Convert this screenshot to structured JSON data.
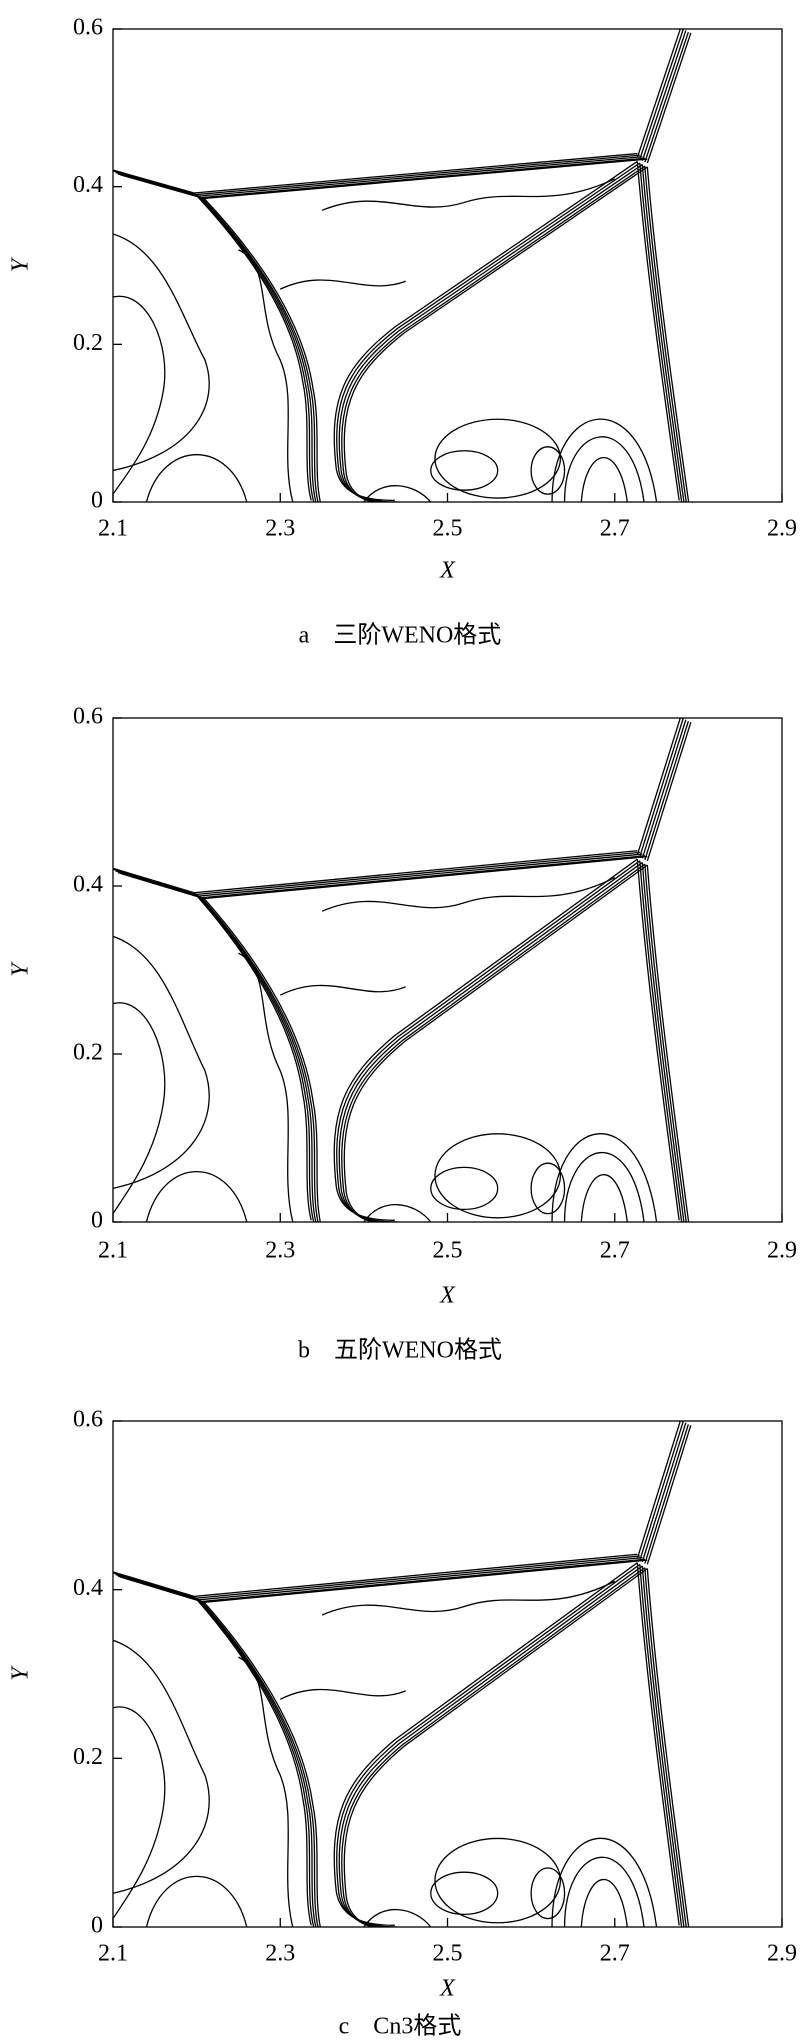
{
  "chart_data": [
    {
      "type": "contour",
      "caption": "a　三阶WENO格式",
      "xlabel": "X",
      "ylabel": "Y",
      "xlim": [
        2.1,
        2.9
      ],
      "ylim": [
        0,
        0.6
      ],
      "xticks": [
        2.1,
        2.3,
        2.5,
        2.7,
        2.9
      ],
      "yticks": [
        0,
        0.2,
        0.4,
        0.6
      ]
    },
    {
      "type": "contour",
      "caption": "b　五阶WENO格式",
      "xlabel": "X",
      "ylabel": "Y",
      "xlim": [
        2.1,
        2.9
      ],
      "ylim": [
        0,
        0.6
      ],
      "xticks": [
        2.1,
        2.3,
        2.5,
        2.7,
        2.9
      ],
      "yticks": [
        0,
        0.2,
        0.4,
        0.6
      ]
    },
    {
      "type": "contour",
      "caption": "c　Cn3格式",
      "xlabel": "X",
      "ylabel": "Y",
      "xlim": [
        2.1,
        2.9
      ],
      "ylim": [
        0,
        0.6
      ],
      "xticks": [
        2.1,
        2.3,
        2.5,
        2.7,
        2.9
      ],
      "yticks": [
        0,
        0.2,
        0.4,
        0.6
      ]
    }
  ]
}
